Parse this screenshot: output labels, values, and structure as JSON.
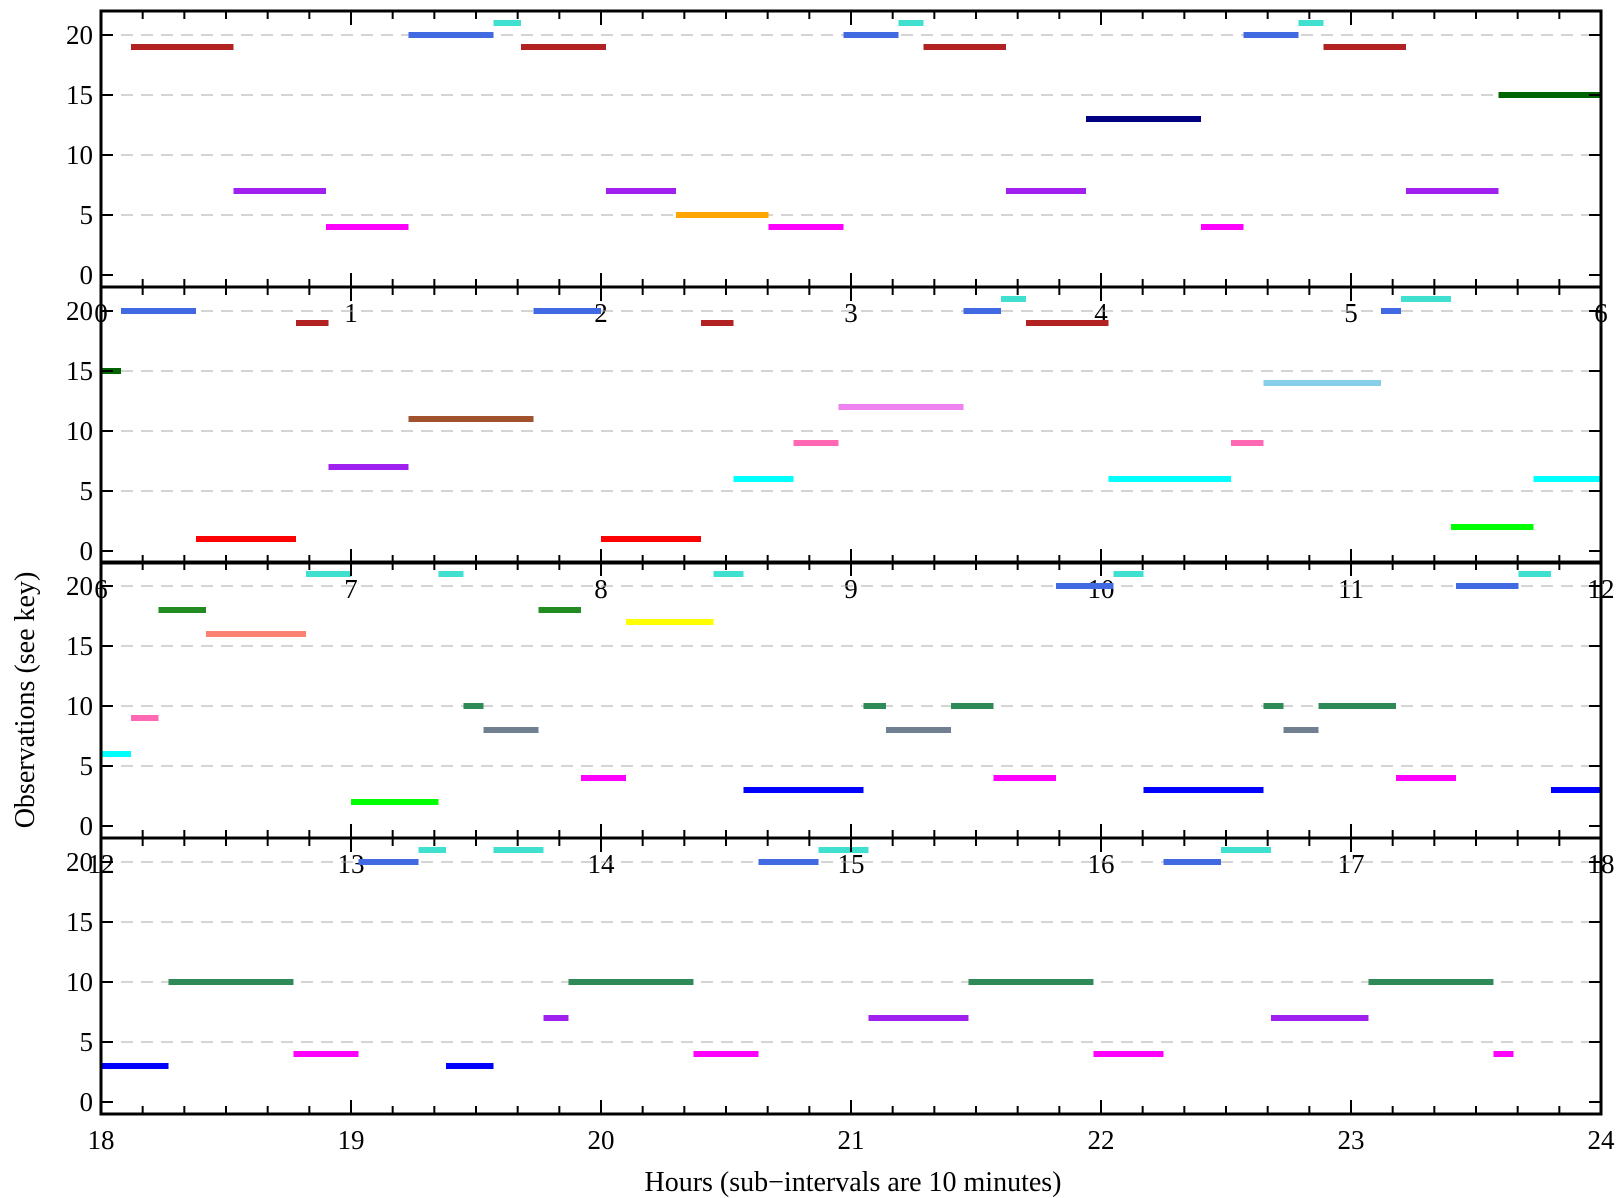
{
  "chart_data": {
    "type": "timeline",
    "title": "",
    "xlabel": "Hours (sub−intervals are 10 minutes)",
    "ylabel": "Observations (see key)",
    "grid": "horizontal dashed at 5-unit steps",
    "y_ticks": [
      "0",
      "5",
      "10",
      "15",
      "20"
    ],
    "ylim": [
      -0.5,
      21.5
    ],
    "panels": [
      {
        "xlim": [
          0,
          6
        ],
        "x_ticks": [
          "0",
          "1",
          "2",
          "3",
          "4",
          "5",
          "6"
        ],
        "segments": [
          {
            "y": 19,
            "x0": 0.12,
            "x1": 0.53,
            "color": "#b22222"
          },
          {
            "y": 20,
            "x0": 1.23,
            "x1": 1.57,
            "color": "#4169e1"
          },
          {
            "y": 21,
            "x0": 1.57,
            "x1": 1.68,
            "color": "#40e0d0"
          },
          {
            "y": 19,
            "x0": 1.68,
            "x1": 2.02,
            "color": "#b22222"
          },
          {
            "y": 7,
            "x0": 0.53,
            "x1": 0.9,
            "color": "#a020f0"
          },
          {
            "y": 4,
            "x0": 0.9,
            "x1": 1.23,
            "color": "#ff00ff"
          },
          {
            "y": 7,
            "x0": 2.02,
            "x1": 2.3,
            "color": "#a020f0"
          },
          {
            "y": 5,
            "x0": 2.3,
            "x1": 2.67,
            "color": "#ffa500"
          },
          {
            "y": 4,
            "x0": 2.67,
            "x1": 2.97,
            "color": "#ff00ff"
          },
          {
            "y": 20,
            "x0": 2.97,
            "x1": 3.19,
            "color": "#4169e1"
          },
          {
            "y": 21,
            "x0": 3.19,
            "x1": 3.29,
            "color": "#40e0d0"
          },
          {
            "y": 19,
            "x0": 3.29,
            "x1": 3.62,
            "color": "#b22222"
          },
          {
            "y": 7,
            "x0": 3.62,
            "x1": 3.94,
            "color": "#a020f0"
          },
          {
            "y": 13,
            "x0": 3.94,
            "x1": 4.4,
            "color": "#000080"
          },
          {
            "y": 4,
            "x0": 4.4,
            "x1": 4.57,
            "color": "#ff00ff"
          },
          {
            "y": 20,
            "x0": 4.57,
            "x1": 4.79,
            "color": "#4169e1"
          },
          {
            "y": 21,
            "x0": 4.79,
            "x1": 4.89,
            "color": "#40e0d0"
          },
          {
            "y": 19,
            "x0": 4.89,
            "x1": 5.22,
            "color": "#b22222"
          },
          {
            "y": 7,
            "x0": 5.22,
            "x1": 5.59,
            "color": "#a020f0"
          },
          {
            "y": 15,
            "x0": 5.59,
            "x1": 6.0,
            "color": "#006400"
          }
        ]
      },
      {
        "xlim": [
          6,
          12
        ],
        "x_ticks": [
          "6",
          "7",
          "8",
          "9",
          "10",
          "11",
          "12"
        ],
        "segments": [
          {
            "y": 15,
            "x0": 6.0,
            "x1": 6.08,
            "color": "#006400"
          },
          {
            "y": 20,
            "x0": 6.08,
            "x1": 6.38,
            "color": "#4169e1"
          },
          {
            "y": 1,
            "x0": 6.38,
            "x1": 6.78,
            "color": "#ff0000"
          },
          {
            "y": 19,
            "x0": 6.78,
            "x1": 6.91,
            "color": "#b22222"
          },
          {
            "y": 7,
            "x0": 6.91,
            "x1": 7.23,
            "color": "#a020f0"
          },
          {
            "y": 11,
            "x0": 7.23,
            "x1": 7.73,
            "color": "#a0522d"
          },
          {
            "y": 20,
            "x0": 7.73,
            "x1": 8.0,
            "color": "#4169e1"
          },
          {
            "y": 1,
            "x0": 8.0,
            "x1": 8.4,
            "color": "#ff0000"
          },
          {
            "y": 19,
            "x0": 8.4,
            "x1": 8.53,
            "color": "#b22222"
          },
          {
            "y": 6,
            "x0": 8.53,
            "x1": 8.77,
            "color": "#00ffff"
          },
          {
            "y": 9,
            "x0": 8.77,
            "x1": 8.95,
            "color": "#ff69b4"
          },
          {
            "y": 12,
            "x0": 8.95,
            "x1": 9.45,
            "color": "#ee82ee"
          },
          {
            "y": 20,
            "x0": 9.45,
            "x1": 9.6,
            "color": "#4169e1"
          },
          {
            "y": 21,
            "x0": 9.6,
            "x1": 9.7,
            "color": "#40e0d0"
          },
          {
            "y": 19,
            "x0": 9.7,
            "x1": 10.03,
            "color": "#b22222"
          },
          {
            "y": 6,
            "x0": 10.03,
            "x1": 10.52,
            "color": "#00ffff"
          },
          {
            "y": 9,
            "x0": 10.52,
            "x1": 10.65,
            "color": "#ff69b4"
          },
          {
            "y": 14,
            "x0": 10.65,
            "x1": 11.12,
            "color": "#87ceeb"
          },
          {
            "y": 20,
            "x0": 11.12,
            "x1": 11.2,
            "color": "#4169e1"
          },
          {
            "y": 21,
            "x0": 11.2,
            "x1": 11.4,
            "color": "#40e0d0"
          },
          {
            "y": 2,
            "x0": 11.4,
            "x1": 11.73,
            "color": "#00ff00"
          },
          {
            "y": 6,
            "x0": 11.73,
            "x1": 12.0,
            "color": "#00ffff"
          }
        ]
      },
      {
        "xlim": [
          12,
          18
        ],
        "x_ticks": [
          "12",
          "13",
          "14",
          "15",
          "16",
          "17",
          "18"
        ],
        "segments": [
          {
            "y": 6,
            "x0": 12.0,
            "x1": 12.12,
            "color": "#00ffff"
          },
          {
            "y": 9,
            "x0": 12.12,
            "x1": 12.23,
            "color": "#ff69b4"
          },
          {
            "y": 18,
            "x0": 12.23,
            "x1": 12.42,
            "color": "#228b22"
          },
          {
            "y": 16,
            "x0": 12.42,
            "x1": 12.82,
            "color": "#fa8072"
          },
          {
            "y": 21,
            "x0": 12.82,
            "x1": 13.0,
            "color": "#40e0d0"
          },
          {
            "y": 2,
            "x0": 13.0,
            "x1": 13.35,
            "color": "#00ff00"
          },
          {
            "y": 21,
            "x0": 13.35,
            "x1": 13.45,
            "color": "#40e0d0"
          },
          {
            "y": 10,
            "x0": 13.45,
            "x1": 13.53,
            "color": "#2e8b57"
          },
          {
            "y": 8,
            "x0": 13.53,
            "x1": 13.75,
            "color": "#708090"
          },
          {
            "y": 18,
            "x0": 13.75,
            "x1": 13.92,
            "color": "#228b22"
          },
          {
            "y": 4,
            "x0": 13.92,
            "x1": 14.1,
            "color": "#ff00ff"
          },
          {
            "y": 17,
            "x0": 14.1,
            "x1": 14.45,
            "color": "#ffff00"
          },
          {
            "y": 21,
            "x0": 14.45,
            "x1": 14.57,
            "color": "#40e0d0"
          },
          {
            "y": 3,
            "x0": 14.57,
            "x1": 15.05,
            "color": "#0000ff"
          },
          {
            "y": 10,
            "x0": 15.05,
            "x1": 15.14,
            "color": "#2e8b57"
          },
          {
            "y": 8,
            "x0": 15.14,
            "x1": 15.4,
            "color": "#708090"
          },
          {
            "y": 10,
            "x0": 15.4,
            "x1": 15.57,
            "color": "#2e8b57"
          },
          {
            "y": 4,
            "x0": 15.57,
            "x1": 15.82,
            "color": "#ff00ff"
          },
          {
            "y": 20,
            "x0": 15.82,
            "x1": 16.05,
            "color": "#4169e1"
          },
          {
            "y": 21,
            "x0": 16.05,
            "x1": 16.17,
            "color": "#40e0d0"
          },
          {
            "y": 3,
            "x0": 16.17,
            "x1": 16.65,
            "color": "#0000ff"
          },
          {
            "y": 10,
            "x0": 16.65,
            "x1": 16.73,
            "color": "#2e8b57"
          },
          {
            "y": 8,
            "x0": 16.73,
            "x1": 16.87,
            "color": "#708090"
          },
          {
            "y": 10,
            "x0": 16.87,
            "x1": 17.18,
            "color": "#2e8b57"
          },
          {
            "y": 4,
            "x0": 17.18,
            "x1": 17.42,
            "color": "#ff00ff"
          },
          {
            "y": 20,
            "x0": 17.42,
            "x1": 17.67,
            "color": "#4169e1"
          },
          {
            "y": 21,
            "x0": 17.67,
            "x1": 17.8,
            "color": "#40e0d0"
          },
          {
            "y": 3,
            "x0": 17.8,
            "x1": 18.0,
            "color": "#0000ff"
          }
        ]
      },
      {
        "xlim": [
          18,
          24
        ],
        "x_ticks": [
          "18",
          "19",
          "20",
          "21",
          "22",
          "23",
          "24"
        ],
        "segments": [
          {
            "y": 3,
            "x0": 18.0,
            "x1": 18.27,
            "color": "#0000ff"
          },
          {
            "y": 10,
            "x0": 18.27,
            "x1": 18.77,
            "color": "#2e8b57"
          },
          {
            "y": 4,
            "x0": 18.77,
            "x1": 19.03,
            "color": "#ff00ff"
          },
          {
            "y": 20,
            "x0": 19.03,
            "x1": 19.27,
            "color": "#4169e1"
          },
          {
            "y": 21,
            "x0": 19.27,
            "x1": 19.38,
            "color": "#40e0d0"
          },
          {
            "y": 3,
            "x0": 19.38,
            "x1": 19.57,
            "color": "#0000ff"
          },
          {
            "y": 21,
            "x0": 19.57,
            "x1": 19.77,
            "color": "#40e0d0"
          },
          {
            "y": 7,
            "x0": 19.77,
            "x1": 19.87,
            "color": "#a020f0"
          },
          {
            "y": 10,
            "x0": 19.87,
            "x1": 20.37,
            "color": "#2e8b57"
          },
          {
            "y": 4,
            "x0": 20.37,
            "x1": 20.63,
            "color": "#ff00ff"
          },
          {
            "y": 20,
            "x0": 20.63,
            "x1": 20.87,
            "color": "#4169e1"
          },
          {
            "y": 21,
            "x0": 20.87,
            "x1": 21.07,
            "color": "#40e0d0"
          },
          {
            "y": 7,
            "x0": 21.07,
            "x1": 21.47,
            "color": "#a020f0"
          },
          {
            "y": 10,
            "x0": 21.47,
            "x1": 21.97,
            "color": "#2e8b57"
          },
          {
            "y": 4,
            "x0": 21.97,
            "x1": 22.25,
            "color": "#ff00ff"
          },
          {
            "y": 20,
            "x0": 22.25,
            "x1": 22.48,
            "color": "#4169e1"
          },
          {
            "y": 21,
            "x0": 22.48,
            "x1": 22.68,
            "color": "#40e0d0"
          },
          {
            "y": 7,
            "x0": 22.68,
            "x1": 23.07,
            "color": "#a020f0"
          },
          {
            "y": 10,
            "x0": 23.07,
            "x1": 23.57,
            "color": "#2e8b57"
          },
          {
            "y": 4,
            "x0": 23.57,
            "x1": 23.65,
            "color": "#ff00ff"
          }
        ]
      }
    ]
  }
}
